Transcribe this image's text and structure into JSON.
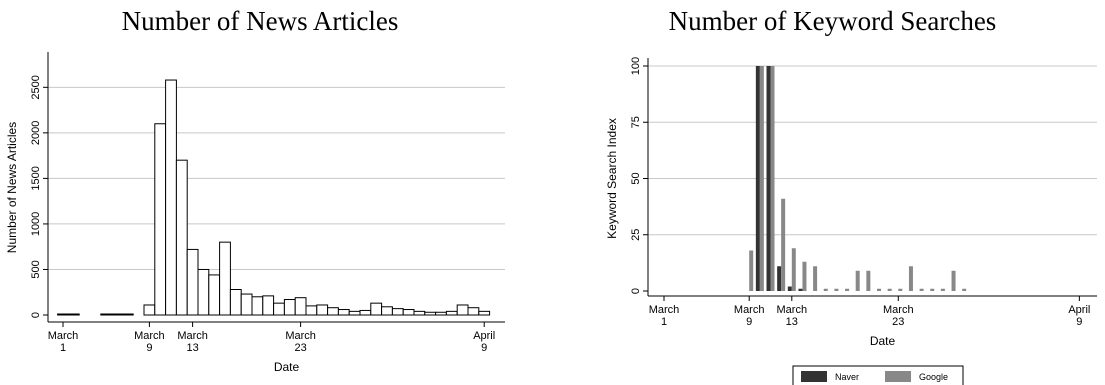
{
  "chart_data": [
    {
      "type": "bar",
      "title": "Number of News Articles",
      "xlabel": "Date",
      "ylabel": "Number of News Articles",
      "ylim": [
        0,
        2800
      ],
      "yticks": [
        0,
        500,
        1000,
        1500,
        2000,
        2500
      ],
      "grid": true,
      "xticks": [
        {
          "line1": "March",
          "line2": "1",
          "day": 1
        },
        {
          "line1": "March",
          "line2": "9",
          "day": 9
        },
        {
          "line1": "March",
          "line2": "13",
          "day": 13
        },
        {
          "line1": "March",
          "line2": "23",
          "day": 23
        },
        {
          "line1": "April",
          "line2": "9",
          "day": 40
        }
      ],
      "series": [
        {
          "x": [
            1,
            2,
            5,
            6,
            7,
            9,
            10,
            11,
            12,
            13,
            14,
            15,
            16,
            17,
            18,
            19,
            20,
            21,
            22,
            23,
            24,
            25,
            26,
            27,
            28,
            29,
            30,
            31,
            32,
            33,
            34,
            35,
            36,
            37,
            38,
            39,
            40
          ],
          "values": [
            5,
            5,
            5,
            5,
            5,
            110,
            2100,
            2580,
            1700,
            720,
            500,
            440,
            800,
            280,
            230,
            200,
            210,
            130,
            170,
            190,
            100,
            110,
            80,
            60,
            40,
            50,
            130,
            90,
            70,
            60,
            40,
            30,
            30,
            40,
            110,
            80,
            40
          ]
        }
      ]
    },
    {
      "type": "bar",
      "title": "Number of Keyword Searches",
      "xlabel": "Date",
      "ylabel": "Keyword Search Index",
      "ylim": [
        0,
        100
      ],
      "yticks": [
        0,
        25,
        50,
        75,
        100
      ],
      "grid": true,
      "legend_position": "bottom",
      "xticks": [
        {
          "line1": "March",
          "line2": "1",
          "day": 1
        },
        {
          "line1": "March",
          "line2": "9",
          "day": 9
        },
        {
          "line1": "March",
          "line2": "13",
          "day": 13
        },
        {
          "line1": "March",
          "line2": "23",
          "day": 23
        },
        {
          "line1": "April",
          "line2": "9",
          "day": 40
        }
      ],
      "series": [
        {
          "name": "Naver",
          "color": "#333333",
          "x": [
            10,
            11,
            12,
            13,
            14
          ],
          "values": [
            100,
            100,
            11,
            2,
            1
          ]
        },
        {
          "name": "Google",
          "color": "#888888",
          "x": [
            9,
            10,
            11,
            12,
            13,
            14,
            15,
            16,
            17,
            18,
            19,
            20,
            21,
            22,
            23,
            24,
            25,
            26,
            27,
            28,
            29
          ],
          "values": [
            18,
            100,
            100,
            41,
            19,
            13,
            11,
            1,
            1,
            1,
            9,
            9,
            1,
            1,
            1,
            11,
            1,
            1,
            1,
            9,
            1
          ]
        }
      ]
    }
  ]
}
